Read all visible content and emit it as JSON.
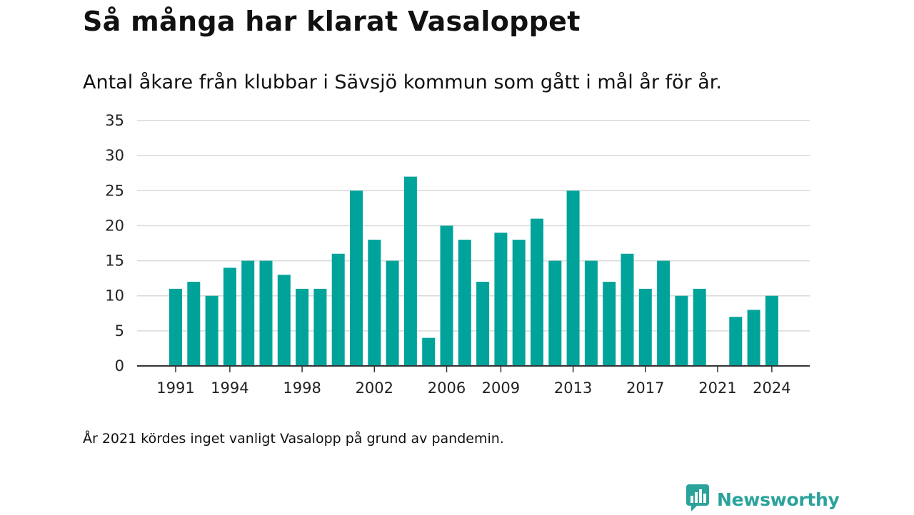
{
  "title": "Så många har klarat Vasaloppet",
  "subtitle": "Antal åkare från klubbar i Sävsjö kommun som gått i mål år för år.",
  "note": "År 2021 kördes inget vanligt Vasalopp på grund av pandemin.",
  "brand": {
    "name": "Newsworthy",
    "icon": "newsworthy-logo-icon"
  },
  "colors": {
    "bar": "#00a39a",
    "grid": "#d9d9d9",
    "axis": "#333333"
  },
  "chart_data": {
    "type": "bar",
    "title": "Så många har klarat Vasaloppet",
    "subtitle": "Antal åkare från klubbar i Sävsjö kommun som gått i mål år för år.",
    "xlabel": "",
    "ylabel": "",
    "ylim": [
      0,
      35
    ],
    "yticks": [
      0,
      5,
      10,
      15,
      20,
      25,
      30,
      35
    ],
    "grid": true,
    "x_tick_labels": [
      "1991",
      "1994",
      "1998",
      "2002",
      "2006",
      "2009",
      "2013",
      "2017",
      "2021",
      "2024"
    ],
    "categories": [
      1991,
      1992,
      1993,
      1994,
      1995,
      1996,
      1997,
      1998,
      1999,
      2000,
      2001,
      2002,
      2003,
      2004,
      2005,
      2006,
      2007,
      2008,
      2009,
      2010,
      2011,
      2012,
      2013,
      2014,
      2015,
      2016,
      2017,
      2018,
      2019,
      2020,
      2021,
      2022,
      2023,
      2024
    ],
    "values": [
      11,
      12,
      10,
      14,
      15,
      15,
      13,
      11,
      11,
      16,
      25,
      18,
      15,
      27,
      4,
      20,
      18,
      12,
      19,
      18,
      21,
      15,
      25,
      15,
      12,
      16,
      11,
      15,
      10,
      11,
      null,
      7,
      8,
      10
    ]
  }
}
